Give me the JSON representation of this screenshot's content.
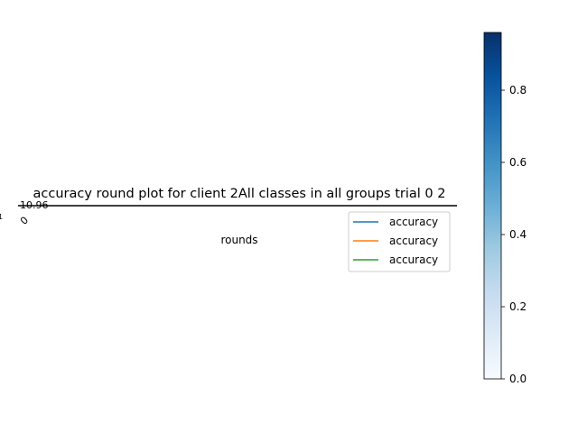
{
  "chart_data": {
    "type": "line",
    "title": "accuracy round plot for client 2All classes in all groups trial 0 2",
    "xlabel": "rounds",
    "ylabel": "",
    "squashed_tick_labels": [
      "10.96",
      "0",
      "1"
    ],
    "series": [
      {
        "name": "accuracy",
        "color": "#1f77b4"
      },
      {
        "name": "accuracy",
        "color": "#ff7f0e"
      },
      {
        "name": "accuracy",
        "color": "#2ca02c"
      }
    ],
    "legend_position": "upper right",
    "colorbar": {
      "colormap": "Blues",
      "range": [
        0,
        0.96
      ],
      "ticks": [
        "0.0",
        "0.2",
        "0.4",
        "0.6",
        "0.8"
      ],
      "tick_values": [
        0.0,
        0.2,
        0.4,
        0.6,
        0.8
      ]
    }
  }
}
